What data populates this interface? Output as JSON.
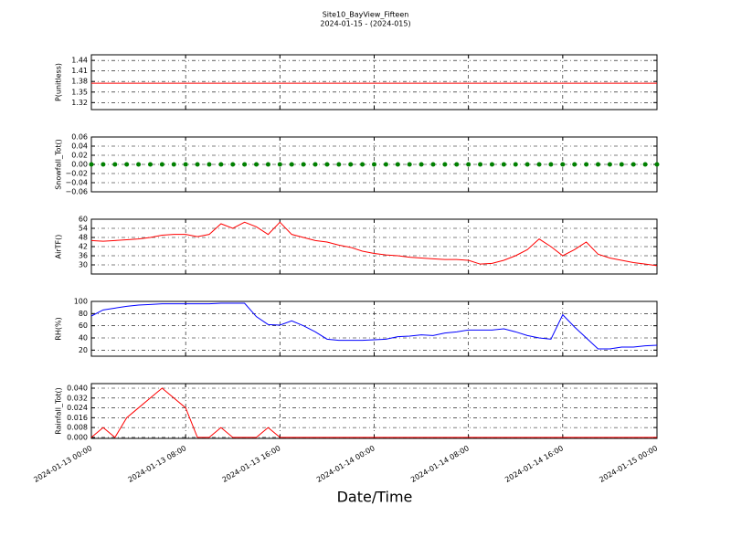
{
  "title": "Site10_BayView_Fifteen",
  "subtitle": "2024-01-15 - (2024-015)",
  "xlabel": "Date/Time",
  "chart_data": [
    {
      "type": "line",
      "ylabel": "P(unitless)",
      "grid": true,
      "x": [
        "2024-01-13 00:00",
        "2024-01-13 01:00",
        "2024-01-13 02:00",
        "2024-01-13 03:00",
        "2024-01-13 04:00",
        "2024-01-13 05:00",
        "2024-01-13 06:00",
        "2024-01-13 07:00",
        "2024-01-13 08:00",
        "2024-01-13 09:00",
        "2024-01-13 10:00",
        "2024-01-13 11:00",
        "2024-01-13 12:00",
        "2024-01-13 13:00",
        "2024-01-13 14:00",
        "2024-01-13 15:00",
        "2024-01-13 16:00",
        "2024-01-13 17:00",
        "2024-01-13 18:00",
        "2024-01-13 19:00",
        "2024-01-13 20:00",
        "2024-01-13 21:00",
        "2024-01-13 22:00",
        "2024-01-13 23:00",
        "2024-01-14 00:00",
        "2024-01-14 01:00",
        "2024-01-14 02:00",
        "2024-01-14 03:00",
        "2024-01-14 04:00",
        "2024-01-14 05:00",
        "2024-01-14 06:00",
        "2024-01-14 07:00",
        "2024-01-14 08:00",
        "2024-01-14 09:00",
        "2024-01-14 10:00",
        "2024-01-14 11:00",
        "2024-01-14 12:00",
        "2024-01-14 13:00",
        "2024-01-14 14:00",
        "2024-01-14 15:00",
        "2024-01-14 16:00",
        "2024-01-14 17:00",
        "2024-01-14 18:00",
        "2024-01-14 19:00",
        "2024-01-14 20:00",
        "2024-01-14 21:00",
        "2024-01-14 22:00",
        "2024-01-14 23:00",
        "2024-01-15 00:00"
      ],
      "series": [
        {
          "color": "#ff0000",
          "values": [
            1.375,
            1.375,
            1.375,
            1.375,
            1.375,
            1.375,
            1.375,
            1.375,
            1.375,
            1.375,
            1.375,
            1.375,
            1.375,
            1.375,
            1.375,
            1.375,
            1.375,
            1.375,
            1.375,
            1.375,
            1.375,
            1.375,
            1.375,
            1.375,
            1.375,
            1.375,
            1.375,
            1.375,
            1.375,
            1.375,
            1.375,
            1.375,
            1.375,
            1.375,
            1.375,
            1.375,
            1.375,
            1.375,
            1.375,
            1.375,
            1.375,
            1.375,
            1.375,
            1.375,
            1.375,
            1.375,
            1.375,
            1.375,
            1.375
          ]
        }
      ],
      "xlim": [
        "2024-01-13 00:00",
        "2024-01-15 00:00"
      ],
      "xticks": [
        "2024-01-13 00:00",
        "2024-01-13 08:00",
        "2024-01-13 16:00",
        "2024-01-14 00:00",
        "2024-01-14 08:00",
        "2024-01-14 16:00",
        "2024-01-15 00:00"
      ],
      "ylim": [
        1.3,
        1.456
      ],
      "yticks": [
        1.32,
        1.35,
        1.38,
        1.41,
        1.44
      ]
    },
    {
      "type": "scatter",
      "ylabel": "Snowfall_Tot()",
      "grid": true,
      "x": [
        "2024-01-13 00:00",
        "2024-01-13 01:00",
        "2024-01-13 02:00",
        "2024-01-13 03:00",
        "2024-01-13 04:00",
        "2024-01-13 05:00",
        "2024-01-13 06:00",
        "2024-01-13 07:00",
        "2024-01-13 08:00",
        "2024-01-13 09:00",
        "2024-01-13 10:00",
        "2024-01-13 11:00",
        "2024-01-13 12:00",
        "2024-01-13 13:00",
        "2024-01-13 14:00",
        "2024-01-13 15:00",
        "2024-01-13 16:00",
        "2024-01-13 17:00",
        "2024-01-13 18:00",
        "2024-01-13 19:00",
        "2024-01-13 20:00",
        "2024-01-13 21:00",
        "2024-01-13 22:00",
        "2024-01-13 23:00",
        "2024-01-14 00:00",
        "2024-01-14 01:00",
        "2024-01-14 02:00",
        "2024-01-14 03:00",
        "2024-01-14 04:00",
        "2024-01-14 05:00",
        "2024-01-14 06:00",
        "2024-01-14 07:00",
        "2024-01-14 08:00",
        "2024-01-14 09:00",
        "2024-01-14 10:00",
        "2024-01-14 11:00",
        "2024-01-14 12:00",
        "2024-01-14 13:00",
        "2024-01-14 14:00",
        "2024-01-14 15:00",
        "2024-01-14 16:00",
        "2024-01-14 17:00",
        "2024-01-14 18:00",
        "2024-01-14 19:00",
        "2024-01-14 20:00",
        "2024-01-14 21:00",
        "2024-01-14 22:00",
        "2024-01-14 23:00",
        "2024-01-15 00:00"
      ],
      "series": [
        {
          "color": "#008000",
          "values": [
            0,
            0,
            0,
            0,
            0,
            0,
            0,
            0,
            0,
            0,
            0,
            0,
            0,
            0,
            0,
            0,
            0,
            0,
            0,
            0,
            0,
            0,
            0,
            0,
            0,
            0,
            0,
            0,
            0,
            0,
            0,
            0,
            0,
            0,
            0,
            0,
            0,
            0,
            0,
            0,
            0,
            0,
            0,
            0,
            0,
            0,
            0,
            0,
            0
          ]
        }
      ],
      "xlim": [
        "2024-01-13 00:00",
        "2024-01-15 00:00"
      ],
      "xticks": [
        "2024-01-13 00:00",
        "2024-01-13 08:00",
        "2024-01-13 16:00",
        "2024-01-14 00:00",
        "2024-01-14 08:00",
        "2024-01-14 16:00",
        "2024-01-15 00:00"
      ],
      "ylim": [
        -0.06,
        0.06
      ],
      "yticks": [
        {
          "value": -0.06,
          "label": "−0.06"
        },
        {
          "value": -0.04,
          "label": "−0.04"
        },
        {
          "value": -0.02,
          "label": "−0.02"
        },
        {
          "value": 0,
          "label": "0.00"
        },
        0.02,
        0.04,
        0.06
      ]
    },
    {
      "type": "line",
      "ylabel": "AirTF()",
      "grid": true,
      "x": [
        "2024-01-13 00:00",
        "2024-01-13 01:00",
        "2024-01-13 02:00",
        "2024-01-13 03:00",
        "2024-01-13 04:00",
        "2024-01-13 05:00",
        "2024-01-13 06:00",
        "2024-01-13 07:00",
        "2024-01-13 08:00",
        "2024-01-13 09:00",
        "2024-01-13 10:00",
        "2024-01-13 11:00",
        "2024-01-13 12:00",
        "2024-01-13 13:00",
        "2024-01-13 14:00",
        "2024-01-13 15:00",
        "2024-01-13 16:00",
        "2024-01-13 17:00",
        "2024-01-13 18:00",
        "2024-01-13 19:00",
        "2024-01-13 20:00",
        "2024-01-13 21:00",
        "2024-01-13 22:00",
        "2024-01-13 23:00",
        "2024-01-14 00:00",
        "2024-01-14 01:00",
        "2024-01-14 02:00",
        "2024-01-14 03:00",
        "2024-01-14 04:00",
        "2024-01-14 05:00",
        "2024-01-14 06:00",
        "2024-01-14 07:00",
        "2024-01-14 08:00",
        "2024-01-14 09:00",
        "2024-01-14 10:00",
        "2024-01-14 11:00",
        "2024-01-14 12:00",
        "2024-01-14 13:00",
        "2024-01-14 14:00",
        "2024-01-14 15:00",
        "2024-01-14 16:00",
        "2024-01-14 17:00",
        "2024-01-14 18:00",
        "2024-01-14 19:00",
        "2024-01-14 20:00",
        "2024-01-14 21:00",
        "2024-01-14 22:00",
        "2024-01-14 23:00",
        "2024-01-15 00:00"
      ],
      "series": [
        {
          "color": "#ff0000",
          "values": [
            46,
            45.5,
            46,
            46.5,
            47,
            48,
            49.5,
            50,
            50,
            48.5,
            50,
            57,
            54,
            58,
            55,
            50,
            58,
            50,
            48,
            46,
            45,
            43,
            41.5,
            39,
            37.5,
            36.5,
            36,
            35,
            34.5,
            34,
            33.5,
            33.5,
            33,
            30.5,
            31,
            33,
            36,
            40,
            47,
            42,
            36,
            40,
            45,
            37,
            34.5,
            33,
            31.5,
            30.5,
            29.5
          ]
        }
      ],
      "xlim": [
        "2024-01-13 00:00",
        "2024-01-15 00:00"
      ],
      "xticks": [
        "2024-01-13 00:00",
        "2024-01-13 08:00",
        "2024-01-13 16:00",
        "2024-01-14 00:00",
        "2024-01-14 08:00",
        "2024-01-14 16:00",
        "2024-01-15 00:00"
      ],
      "ylim": [
        24,
        60
      ],
      "yticks": [
        30,
        36,
        42,
        48,
        54,
        60
      ]
    },
    {
      "type": "line",
      "ylabel": "RH(%)",
      "grid": true,
      "x": [
        "2024-01-13 00:00",
        "2024-01-13 01:00",
        "2024-01-13 02:00",
        "2024-01-13 03:00",
        "2024-01-13 04:00",
        "2024-01-13 05:00",
        "2024-01-13 06:00",
        "2024-01-13 07:00",
        "2024-01-13 08:00",
        "2024-01-13 09:00",
        "2024-01-13 10:00",
        "2024-01-13 11:00",
        "2024-01-13 12:00",
        "2024-01-13 13:00",
        "2024-01-13 14:00",
        "2024-01-13 15:00",
        "2024-01-13 16:00",
        "2024-01-13 17:00",
        "2024-01-13 18:00",
        "2024-01-13 19:00",
        "2024-01-13 20:00",
        "2024-01-13 21:00",
        "2024-01-13 22:00",
        "2024-01-13 23:00",
        "2024-01-14 00:00",
        "2024-01-14 01:00",
        "2024-01-14 02:00",
        "2024-01-14 03:00",
        "2024-01-14 04:00",
        "2024-01-14 05:00",
        "2024-01-14 06:00",
        "2024-01-14 07:00",
        "2024-01-14 08:00",
        "2024-01-14 09:00",
        "2024-01-14 10:00",
        "2024-01-14 11:00",
        "2024-01-14 12:00",
        "2024-01-14 13:00",
        "2024-01-14 14:00",
        "2024-01-14 15:00",
        "2024-01-14 16:00",
        "2024-01-14 17:00",
        "2024-01-14 18:00",
        "2024-01-14 19:00",
        "2024-01-14 20:00",
        "2024-01-14 21:00",
        "2024-01-14 22:00",
        "2024-01-14 23:00",
        "2024-01-15 00:00"
      ],
      "series": [
        {
          "color": "#0000ff",
          "values": [
            76,
            86,
            89,
            92,
            94,
            95,
            96,
            96,
            96,
            96,
            96,
            97,
            97,
            97,
            75,
            62,
            61,
            68,
            60,
            50,
            38,
            36,
            36,
            36,
            37,
            38,
            42,
            43,
            45,
            44,
            48,
            50,
            53,
            53,
            53,
            55,
            50,
            44,
            40,
            38,
            78,
            58,
            40,
            22,
            22,
            25,
            25,
            27,
            28
          ]
        }
      ],
      "xlim": [
        "2024-01-13 00:00",
        "2024-01-15 00:00"
      ],
      "xticks": [
        "2024-01-13 00:00",
        "2024-01-13 08:00",
        "2024-01-13 16:00",
        "2024-01-14 00:00",
        "2024-01-14 08:00",
        "2024-01-14 16:00",
        "2024-01-15 00:00"
      ],
      "ylim": [
        10,
        100
      ],
      "yticks": [
        20,
        40,
        60,
        80,
        100
      ]
    },
    {
      "type": "line",
      "ylabel": "Rainfall_Tot()",
      "grid": true,
      "x": [
        "2024-01-13 00:00",
        "2024-01-13 01:00",
        "2024-01-13 02:00",
        "2024-01-13 03:00",
        "2024-01-13 04:00",
        "2024-01-13 05:00",
        "2024-01-13 06:00",
        "2024-01-13 07:00",
        "2024-01-13 08:00",
        "2024-01-13 09:00",
        "2024-01-13 10:00",
        "2024-01-13 11:00",
        "2024-01-13 12:00",
        "2024-01-13 13:00",
        "2024-01-13 14:00",
        "2024-01-13 15:00",
        "2024-01-13 16:00",
        "2024-01-13 17:00",
        "2024-01-13 18:00",
        "2024-01-13 19:00",
        "2024-01-13 20:00",
        "2024-01-13 21:00",
        "2024-01-13 22:00",
        "2024-01-13 23:00",
        "2024-01-14 00:00",
        "2024-01-14 01:00",
        "2024-01-14 02:00",
        "2024-01-14 03:00",
        "2024-01-14 04:00",
        "2024-01-14 05:00",
        "2024-01-14 06:00",
        "2024-01-14 07:00",
        "2024-01-14 08:00",
        "2024-01-14 09:00",
        "2024-01-14 10:00",
        "2024-01-14 11:00",
        "2024-01-14 12:00",
        "2024-01-14 13:00",
        "2024-01-14 14:00",
        "2024-01-14 15:00",
        "2024-01-14 16:00",
        "2024-01-14 17:00",
        "2024-01-14 18:00",
        "2024-01-14 19:00",
        "2024-01-14 20:00",
        "2024-01-14 21:00",
        "2024-01-14 22:00",
        "2024-01-14 23:00",
        "2024-01-15 00:00"
      ],
      "series": [
        {
          "color": "#ff0000",
          "values": [
            0,
            0.008,
            0,
            0.016,
            0.024,
            0.032,
            0.04,
            0.032,
            0.024,
            0,
            0,
            0.008,
            0,
            0,
            0,
            0.008,
            0,
            0,
            0,
            0,
            0,
            0,
            0,
            0,
            0,
            0,
            0,
            0,
            0,
            0,
            0,
            0,
            0,
            0,
            0,
            0,
            0,
            0,
            0,
            0,
            0,
            0,
            0,
            0,
            0,
            0,
            0,
            0,
            0
          ]
        }
      ],
      "xlim": [
        "2024-01-13 00:00",
        "2024-01-15 00:00"
      ],
      "xticks": [
        "2024-01-13 00:00",
        "2024-01-13 08:00",
        "2024-01-13 16:00",
        "2024-01-14 00:00",
        "2024-01-14 08:00",
        "2024-01-14 16:00",
        "2024-01-15 00:00"
      ],
      "ylim": [
        -0.0008,
        0.0437
      ],
      "yticks": [
        {
          "value": 0,
          "label": "0.000"
        },
        {
          "value": 0.008,
          "label": "0.008"
        },
        {
          "value": 0.016,
          "label": "0.016"
        },
        {
          "value": 0.024,
          "label": "0.024"
        },
        {
          "value": 0.032,
          "label": "0.032"
        },
        {
          "value": 0.04,
          "label": "0.040"
        }
      ]
    }
  ]
}
